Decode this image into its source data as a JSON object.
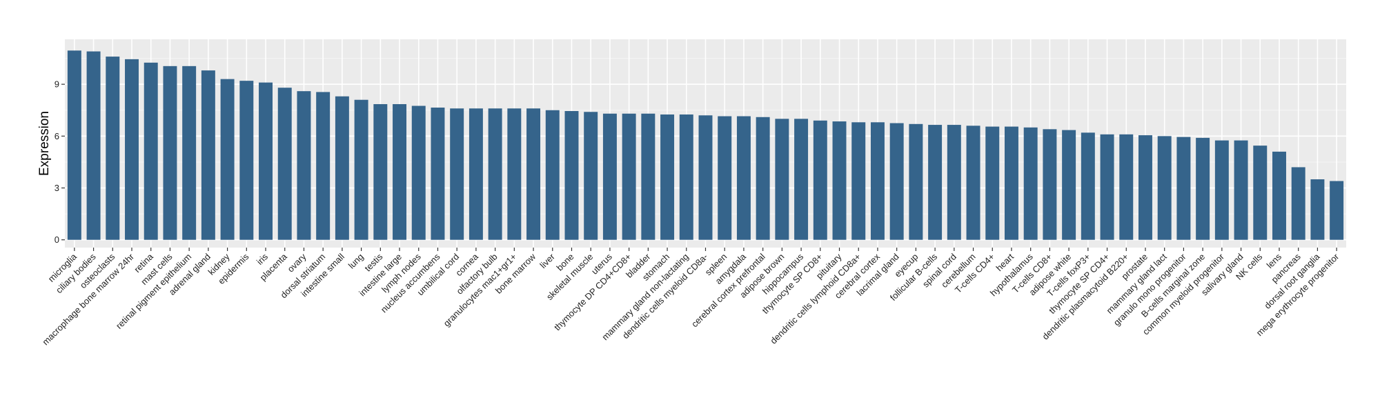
{
  "chart_data": {
    "type": "bar",
    "ylabel": "Expression",
    "xlabel": "",
    "ylim": [
      -0.45,
      11.6
    ],
    "yticks": [
      0,
      3,
      6,
      9
    ],
    "grid": true,
    "panel_color": "#EBEBEB",
    "bar_color": "#35648B",
    "categories": [
      "microglia",
      "ciliary bodies",
      "osteoclasts",
      "macrophage bone marrow 24hr",
      "retina",
      "mast cells",
      "retinal pigment epithelium",
      "adrenal gland",
      "kidney",
      "epidermis",
      "iris",
      "placenta",
      "ovary",
      "dorsal striatum",
      "intestine small",
      "lung",
      "testis",
      "intestine large",
      "lymph nodes",
      "nucleus accumbens",
      "umbilical cord",
      "cornea",
      "olfactory bulb",
      "granulocytes mac1+gr1+",
      "bone marrow",
      "liver",
      "bone",
      "skeletal muscle",
      "uterus",
      "thymocyte DP CD4+CD8+",
      "bladder",
      "stomach",
      "mammary gland non-lactating",
      "dendritic cells myeloid CD8a-",
      "spleen",
      "amygdala",
      "cerebral cortex prefrontal",
      "adipose brown",
      "hippocampus",
      "thymocyte SP CD8+",
      "pituitary",
      "dendritic cells lymphoid CD8a+",
      "cerebral cortex",
      "lacrimal gland",
      "eyecup",
      "follicular B-cells",
      "spinal cord",
      "cerebellum",
      "T-cells CD4+",
      "heart",
      "hypothalamus",
      "T-cells CD8+",
      "adipose white",
      "T-cells foxP3+",
      "thymocyte SP CD4+",
      "dendritic plasmacytoid B220+",
      "prostate",
      "mammary gland lact",
      "granulo mono progenitor",
      "B-cells marginal zone",
      "common myeloid progenitor",
      "salivary gland",
      "NK cells",
      "lens",
      "pancreas",
      "dorsal root ganglia",
      "mega erythrocyte progenitor"
    ],
    "values": [
      10.95,
      10.9,
      10.6,
      10.45,
      10.25,
      10.05,
      10.05,
      9.8,
      9.3,
      9.2,
      9.1,
      8.8,
      8.6,
      8.55,
      8.3,
      8.1,
      7.85,
      7.85,
      7.75,
      7.65,
      7.6,
      7.6,
      7.6,
      7.6,
      7.6,
      7.5,
      7.45,
      7.4,
      7.3,
      7.3,
      7.3,
      7.25,
      7.25,
      7.2,
      7.15,
      7.15,
      7.1,
      7.0,
      7.0,
      6.9,
      6.85,
      6.8,
      6.8,
      6.75,
      6.7,
      6.65,
      6.65,
      6.6,
      6.55,
      6.55,
      6.5,
      6.4,
      6.35,
      6.2,
      6.1,
      6.1,
      6.05,
      6.0,
      5.95,
      5.9,
      5.75,
      5.75,
      5.45,
      5.1,
      4.2,
      3.5,
      3.4
    ]
  }
}
